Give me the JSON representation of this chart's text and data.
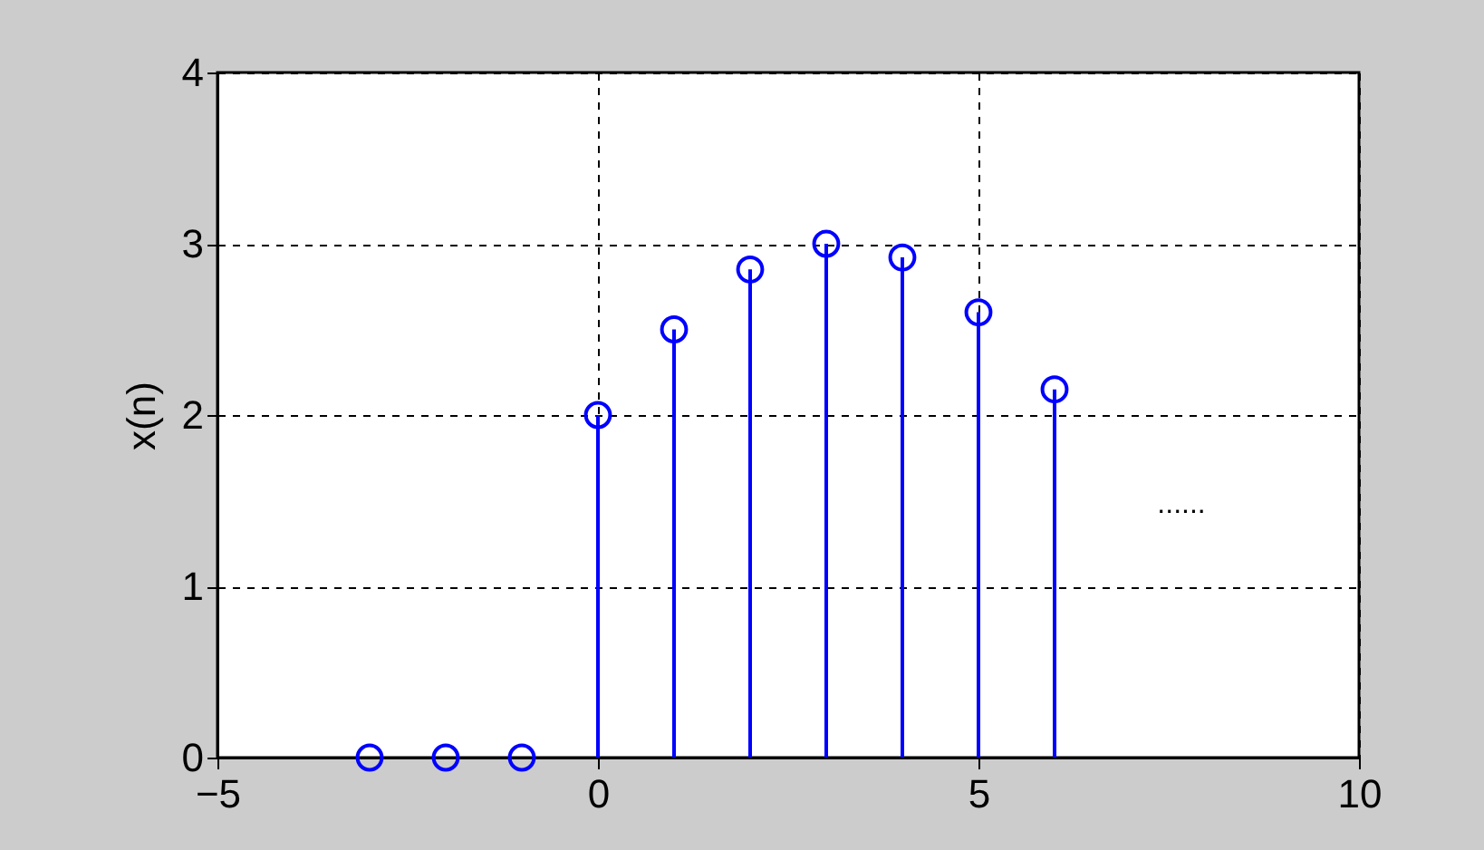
{
  "chart_data": {
    "type": "lollipop",
    "ylabel": "x(n)",
    "x": [
      -3,
      -2,
      -1,
      0,
      1,
      2,
      3,
      4,
      5,
      6
    ],
    "series": [
      {
        "color": "#0000ff",
        "values": [
          0,
          0,
          0,
          2,
          2.5,
          2.85,
          3,
          2.92,
          2.6,
          2.15
        ]
      }
    ],
    "xlim": [
      -5,
      10
    ],
    "xticks": [
      -5,
      0,
      5,
      10
    ],
    "ylim": [
      0,
      4
    ],
    "yticks": [
      0,
      1,
      2,
      3,
      4
    ],
    "grid": true,
    "marker": "circle",
    "annotations": [
      "......"
    ]
  }
}
